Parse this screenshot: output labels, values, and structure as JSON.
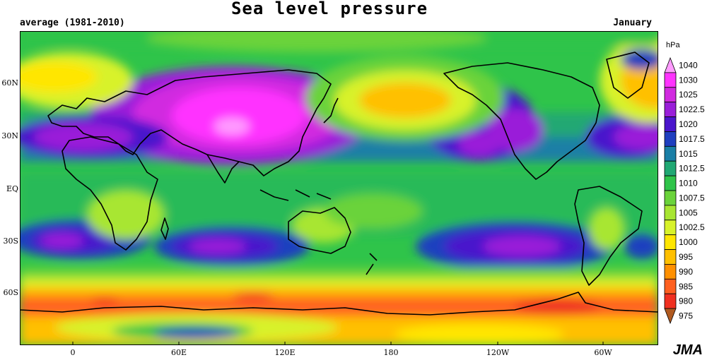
{
  "title": "Sea level pressure",
  "subtitle_left": "average (1981-2010)",
  "subtitle_right": "January",
  "credit": "JMA",
  "legend": {
    "unit": "hPa",
    "levels": [
      {
        "label": "1040",
        "color": "#ff9cff"
      },
      {
        "label": "1030",
        "color": "#ff33ff"
      },
      {
        "label": "1025",
        "color": "#d12ae0"
      },
      {
        "label": "1022.5",
        "color": "#9a1fd9"
      },
      {
        "label": "1020",
        "color": "#4a16cc"
      },
      {
        "label": "1017.5",
        "color": "#1f3fbf"
      },
      {
        "label": "1015",
        "color": "#1a7fa6"
      },
      {
        "label": "1012.5",
        "color": "#20a873"
      },
      {
        "label": "1010",
        "color": "#2fc44a"
      },
      {
        "label": "1007.5",
        "color": "#6ad33a"
      },
      {
        "label": "1005",
        "color": "#a8e632"
      },
      {
        "label": "1002.5",
        "color": "#d8f22a"
      },
      {
        "label": "1000",
        "color": "#ffe600"
      },
      {
        "label": "995",
        "color": "#ffc000"
      },
      {
        "label": "990",
        "color": "#ff9000"
      },
      {
        "label": "985",
        "color": "#ff6020"
      },
      {
        "label": "980",
        "color": "#f03020"
      },
      {
        "label": "975",
        "color": "#b05a20"
      }
    ]
  },
  "axes": {
    "lat_labels": [
      "60N",
      "30N",
      "EQ",
      "30S",
      "60S"
    ],
    "lon_labels": [
      "0",
      "60E",
      "120E",
      "180",
      "120W",
      "60W"
    ]
  }
}
